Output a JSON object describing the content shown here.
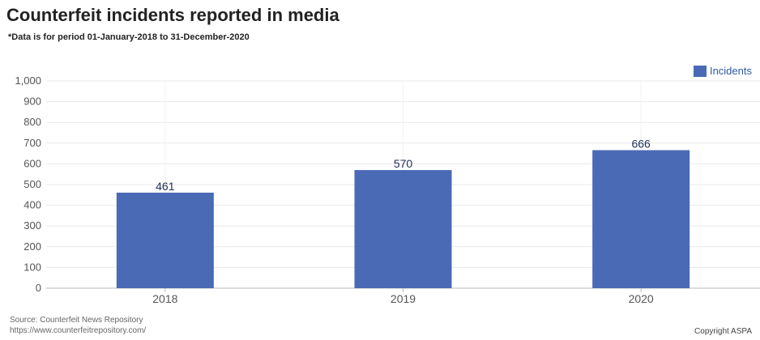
{
  "colors": {
    "bar": "#4a6ab5",
    "grid": "#e9e9e9",
    "axis": "#555555"
  },
  "chart_data": {
    "type": "bar",
    "title": "Counterfeit incidents reported in media",
    "subtitle": "*Data is for period 01-January-2018 to 31-December-2020",
    "categories": [
      "2018",
      "2019",
      "2020"
    ],
    "series": [
      {
        "name": "Incidents",
        "values": [
          461,
          570,
          666
        ]
      }
    ],
    "y_ticks": [
      "0",
      "100",
      "200",
      "300",
      "400",
      "500",
      "600",
      "700",
      "800",
      "900",
      "1,000"
    ],
    "ylim": [
      0,
      1000
    ],
    "xlabel": "",
    "ylabel": "",
    "grid": true,
    "legend_position": "top-right",
    "data_labels": [
      "461",
      "570",
      "666"
    ]
  },
  "footer": {
    "source_line1": "Source: Counterfeit News Repository",
    "source_line2": "https://www.counterfeitrepository.com/",
    "copyright": "Copyright ASPA"
  }
}
